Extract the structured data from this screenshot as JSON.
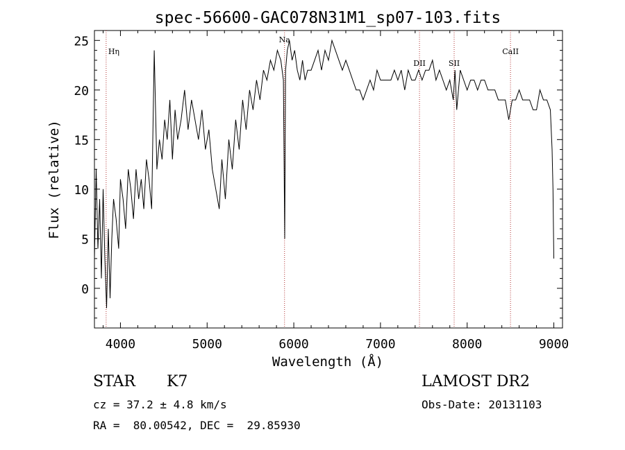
{
  "chart_data": {
    "type": "line",
    "title": "spec-56600-GAC078N31M1_sp07-103.fits",
    "xlabel": "Wavelength (Å)",
    "ylabel": "Flux (relative)",
    "xlim": [
      3700,
      9100
    ],
    "ylim": [
      -4,
      26
    ],
    "xticks": [
      4000,
      5000,
      6000,
      7000,
      8000,
      9000
    ],
    "yticks": [
      0,
      5,
      10,
      15,
      20,
      25
    ],
    "series": [
      {
        "x": [
          3700,
          3720,
          3740,
          3760,
          3780,
          3800,
          3820,
          3840,
          3860,
          3880,
          3900,
          3920,
          3950,
          3980,
          4000,
          4030,
          4060,
          4090,
          4120,
          4150,
          4180,
          4210,
          4240,
          4270,
          4300,
          4330,
          4360,
          4390,
          4420,
          4450,
          4480,
          4510,
          4540,
          4570,
          4600,
          4630,
          4660,
          4700,
          4740,
          4780,
          4820,
          4860,
          4900,
          4940,
          4980,
          5020,
          5060,
          5100,
          5140,
          5170,
          5190,
          5210,
          5250,
          5290,
          5330,
          5370,
          5410,
          5450,
          5490,
          5530,
          5570,
          5610,
          5650,
          5690,
          5730,
          5770,
          5810,
          5850,
          5880,
          5895,
          5905,
          5925,
          5950,
          5980,
          6010,
          6040,
          6070,
          6100,
          6130,
          6160,
          6200,
          6240,
          6280,
          6320,
          6360,
          6400,
          6440,
          6480,
          6520,
          6560,
          6600,
          6640,
          6680,
          6720,
          6760,
          6800,
          6840,
          6880,
          6920,
          6960,
          7000,
          7040,
          7080,
          7120,
          7160,
          7200,
          7240,
          7280,
          7320,
          7360,
          7400,
          7440,
          7480,
          7520,
          7560,
          7600,
          7640,
          7680,
          7720,
          7760,
          7800,
          7840,
          7860,
          7880,
          7920,
          7960,
          8000,
          8040,
          8080,
          8120,
          8160,
          8200,
          8240,
          8280,
          8320,
          8360,
          8400,
          8440,
          8480,
          8520,
          8560,
          8600,
          8640,
          8680,
          8720,
          8760,
          8800,
          8840,
          8880,
          8920,
          8960,
          8980,
          8990,
          9000
        ],
        "values": [
          3,
          12,
          4,
          9,
          1,
          10,
          3,
          -2,
          6,
          -1,
          5,
          9,
          7,
          4,
          11,
          9,
          6,
          12,
          10,
          7,
          12,
          9,
          11,
          8,
          13,
          11,
          8,
          24,
          12,
          15,
          13,
          17,
          15,
          19,
          13,
          18,
          15,
          17,
          20,
          16,
          19,
          17,
          15,
          18,
          14,
          16,
          12,
          10,
          8,
          13,
          11,
          9,
          15,
          12,
          17,
          14,
          19,
          16,
          20,
          18,
          21,
          19,
          22,
          21,
          23,
          22,
          24,
          23,
          21,
          5,
          22,
          24,
          25,
          23,
          24,
          22,
          21,
          23,
          21,
          22,
          22,
          23,
          24,
          22,
          24,
          23,
          25,
          24,
          23,
          22,
          23,
          22,
          21,
          20,
          20,
          19,
          20,
          21,
          20,
          22,
          21,
          21,
          21,
          21,
          22,
          21,
          22,
          20,
          22,
          21,
          21,
          22,
          21,
          22,
          22,
          23,
          21,
          22,
          21,
          20,
          21,
          19,
          22,
          18,
          22,
          21,
          20,
          21,
          21,
          20,
          21,
          21,
          20,
          20,
          20,
          19,
          19,
          19,
          17,
          19,
          19,
          20,
          19,
          19,
          19,
          18,
          18,
          20,
          19,
          19,
          18,
          14,
          10,
          3
        ]
      }
    ],
    "markers": [
      {
        "label": "Hη",
        "x": 3835
      },
      {
        "label": "Na",
        "x": 5893
      },
      {
        "label": "DII",
        "x": 7450
      },
      {
        "label": "SII",
        "x": 7850
      },
      {
        "label": "CaII",
        "x": 8500
      }
    ],
    "grid": false,
    "colors": {
      "line": "#000000",
      "marker": "#b03030"
    }
  },
  "info": {
    "object_class": "STAR",
    "subclass": "K7",
    "survey": "LAMOST DR2",
    "cz": "cz = 37.2 ± 4.8 km/s",
    "obs_date": "Obs-Date: 20131103",
    "coords": "RA =  80.00542, DEC =  29.85930"
  }
}
